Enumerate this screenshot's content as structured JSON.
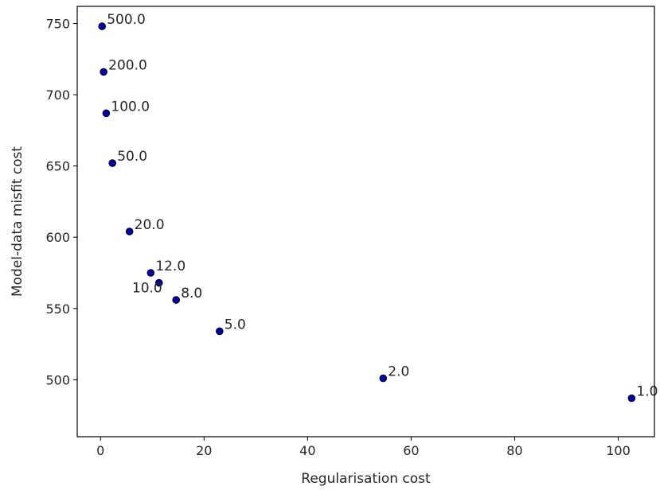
{
  "chart_data": {
    "type": "scatter",
    "xlabel": "Regularisation cost",
    "ylabel": "Model-data misfit cost",
    "xlim": [
      -4.5,
      107
    ],
    "ylim": [
      460,
      762
    ],
    "xticks": [
      0,
      20,
      40,
      60,
      80,
      100
    ],
    "yticks": [
      500,
      550,
      600,
      650,
      700,
      750
    ],
    "grid": false,
    "marker_color": "#0000aa",
    "marker_edge_color": "#000000",
    "points": [
      {
        "x": 0.3,
        "y": 748,
        "label": "500.0"
      },
      {
        "x": 0.6,
        "y": 716,
        "label": "200.0"
      },
      {
        "x": 1.1,
        "y": 687,
        "label": "100.0"
      },
      {
        "x": 2.3,
        "y": 652,
        "label": "50.0"
      },
      {
        "x": 5.6,
        "y": 604,
        "label": "20.0"
      },
      {
        "x": 9.7,
        "y": 575,
        "label": "12.0"
      },
      {
        "x": 11.3,
        "y": 568,
        "label": "10.0"
      },
      {
        "x": 14.6,
        "y": 556,
        "label": "8.0"
      },
      {
        "x": 23.0,
        "y": 534,
        "label": "5.0"
      },
      {
        "x": 54.6,
        "y": 501,
        "label": "2.0"
      },
      {
        "x": 102.6,
        "y": 487,
        "label": "1.0"
      }
    ]
  }
}
